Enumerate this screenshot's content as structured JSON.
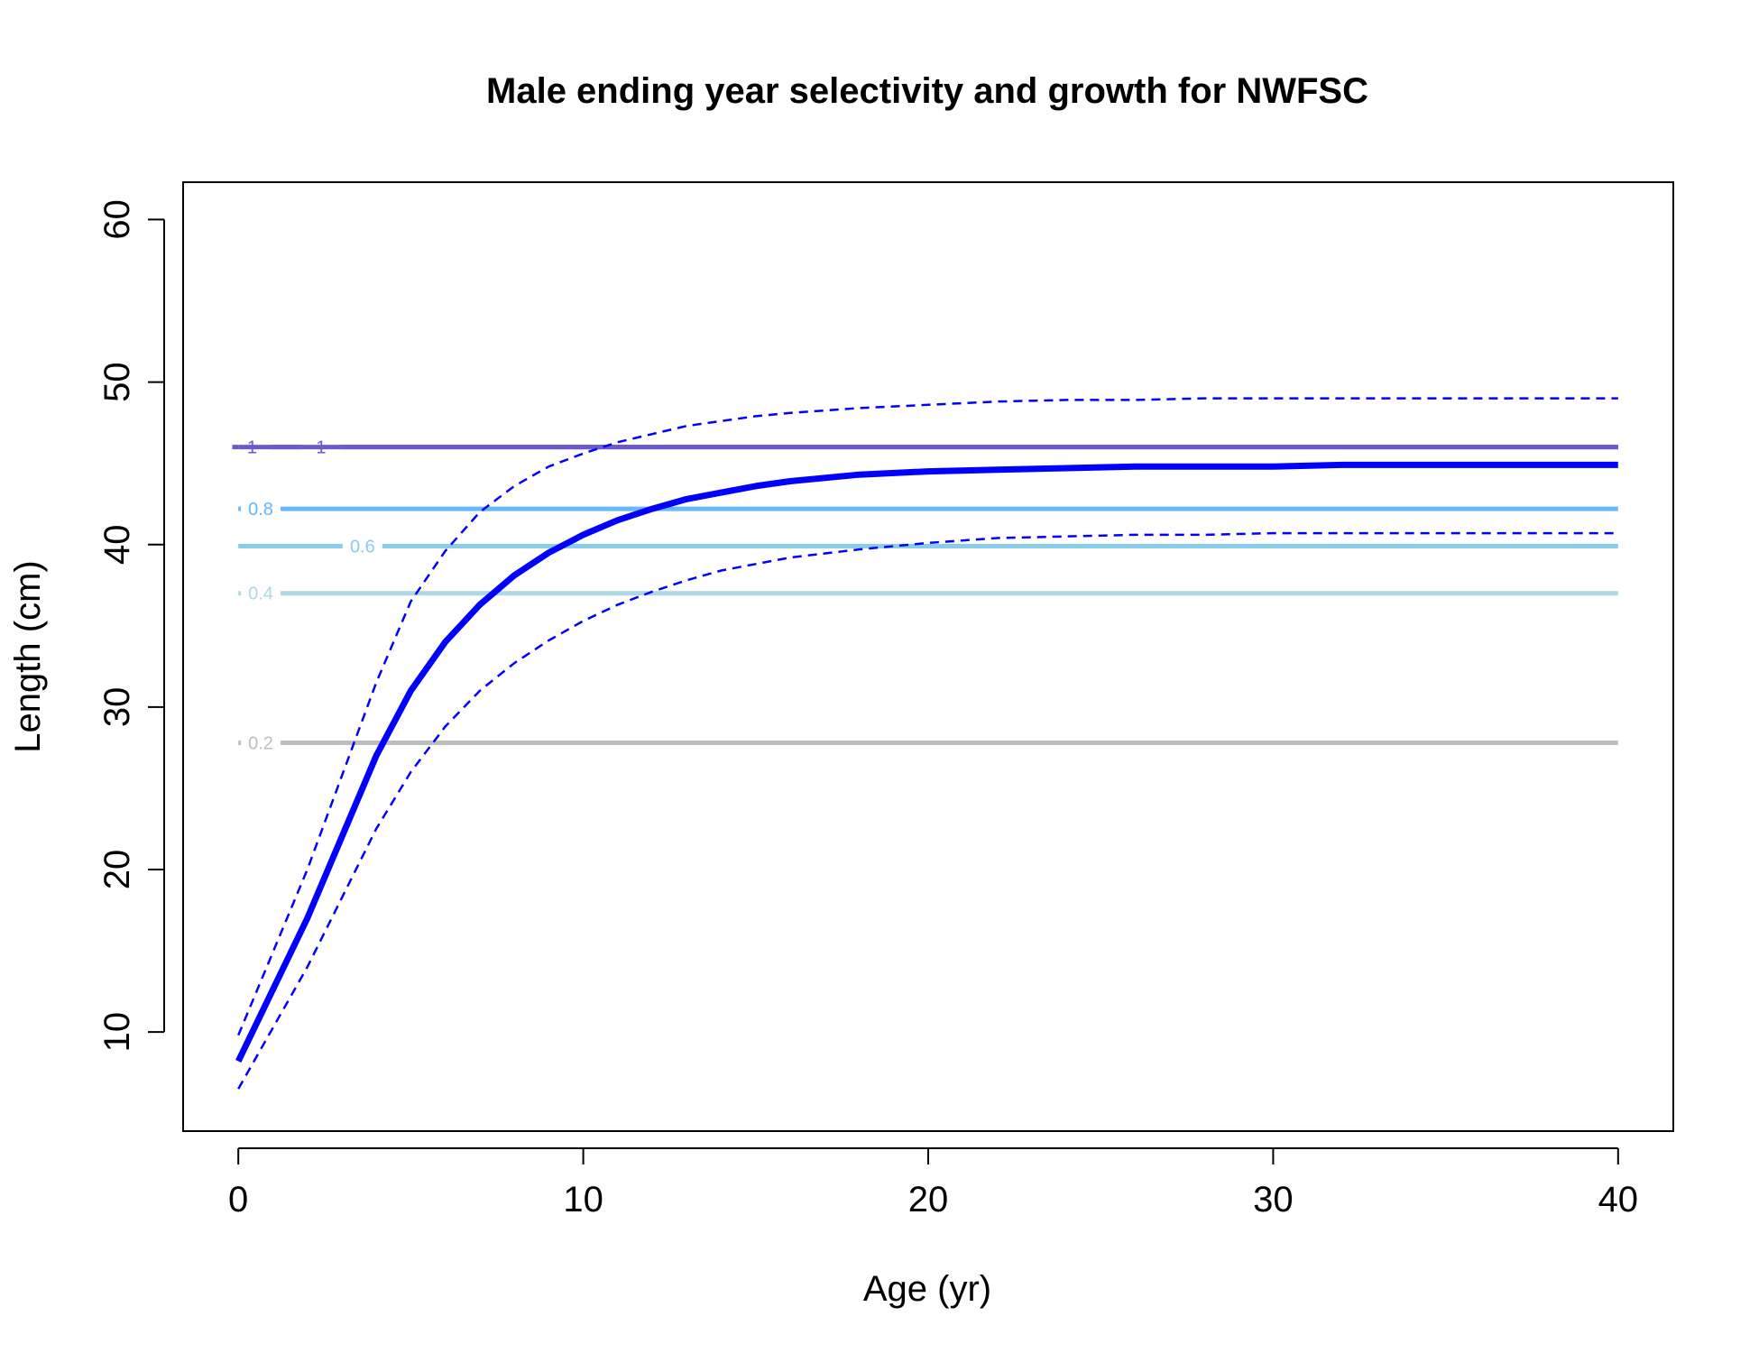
{
  "chart_data": {
    "type": "line",
    "title": "Male ending year selectivity and growth for NWFSC",
    "xlabel": "Age (yr)",
    "ylabel": "Length (cm)",
    "xlim": [
      -1.6,
      41.6
    ],
    "ylim": [
      3.9,
      62.3
    ],
    "x_ticks": [
      0,
      10,
      20,
      30,
      40
    ],
    "y_ticks": [
      10,
      20,
      30,
      40,
      50,
      60
    ],
    "grid": false,
    "legend": "none",
    "growth": {
      "ages": [
        0,
        2,
        4,
        5,
        6,
        7,
        8,
        9,
        10,
        11,
        12,
        13,
        14,
        15,
        16,
        18,
        20,
        22,
        24,
        26,
        28,
        30,
        32,
        34,
        36,
        38,
        40
      ],
      "mean": [
        8.2,
        17.0,
        27.0,
        31.0,
        34.0,
        36.3,
        38.1,
        39.5,
        40.6,
        41.5,
        42.2,
        42.8,
        43.2,
        43.6,
        43.9,
        44.3,
        44.5,
        44.6,
        44.7,
        44.8,
        44.8,
        44.8,
        44.9,
        44.9,
        44.9,
        44.9,
        44.9
      ],
      "upper": [
        9.8,
        20.0,
        31.5,
        36.5,
        39.6,
        42.0,
        43.6,
        44.8,
        45.6,
        46.3,
        46.8,
        47.3,
        47.6,
        47.9,
        48.1,
        48.4,
        48.6,
        48.8,
        48.9,
        48.9,
        49.0,
        49.0,
        49.0,
        49.0,
        49.0,
        49.0,
        49.0
      ],
      "lower": [
        6.5,
        14.0,
        22.5,
        26.0,
        28.8,
        31.0,
        32.7,
        34.1,
        35.3,
        36.3,
        37.1,
        37.8,
        38.4,
        38.8,
        39.2,
        39.7,
        40.1,
        40.4,
        40.5,
        40.6,
        40.6,
        40.7,
        40.7,
        40.7,
        40.7,
        40.7,
        40.7
      ],
      "color": "#0000ff"
    },
    "selectivity_contours": [
      {
        "level": "0.2",
        "y": 27.8,
        "color": "#bebebe",
        "label_x": 0.65
      },
      {
        "level": "0.4",
        "y": 37.0,
        "color": "#add8e6",
        "label_x": 0.65
      },
      {
        "level": "0.6",
        "y": 39.9,
        "color": "#87ceeb",
        "label_x": 3.6
      },
      {
        "level": "0.8",
        "y": 42.2,
        "color": "#63b8ff",
        "label_x": 0.65
      },
      {
        "level": "1",
        "y": 46.0,
        "color": "#6a5acd",
        "label_x": 0.4
      },
      {
        "level": "1",
        "y": 46.0,
        "color": "#6a5acd",
        "label_x": 2.4
      }
    ]
  }
}
